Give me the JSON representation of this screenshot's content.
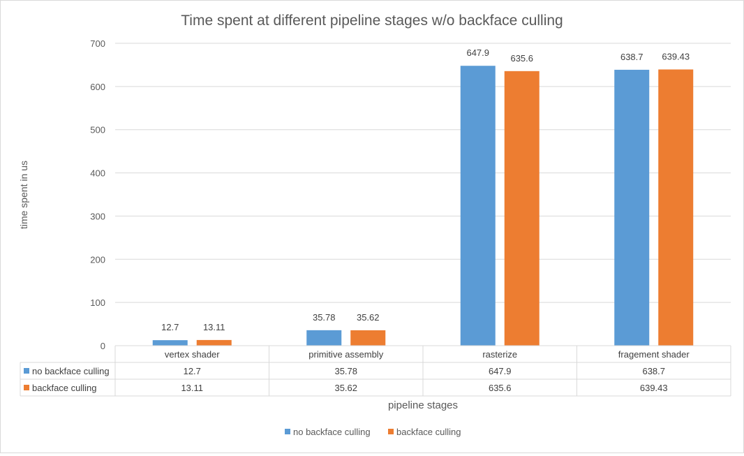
{
  "chart_data": {
    "type": "bar",
    "title": "Time spent at different pipeline stages w/o backface culling",
    "xlabel": "pipeline stages",
    "ylabel": "time spent in us",
    "ylim": [
      0,
      700
    ],
    "yticks": [
      0,
      100,
      200,
      300,
      400,
      500,
      600,
      700
    ],
    "grid": true,
    "legend_position": "bottom",
    "categories": [
      "vertex shader",
      "primitive assembly",
      "rasterize",
      "fragement shader"
    ],
    "series": [
      {
        "name": "no backface culling",
        "color": "#5b9bd5",
        "values": [
          12.7,
          35.78,
          647.9,
          638.7
        ],
        "labels": [
          "12.7",
          "35.78",
          "647.9",
          "638.7"
        ]
      },
      {
        "name": "backface culling",
        "color": "#ed7d31",
        "values": [
          13.11,
          35.62,
          635.6,
          639.43
        ],
        "labels": [
          "13.11",
          "35.62",
          "635.6",
          "639.43"
        ]
      }
    ],
    "data_table": true
  }
}
